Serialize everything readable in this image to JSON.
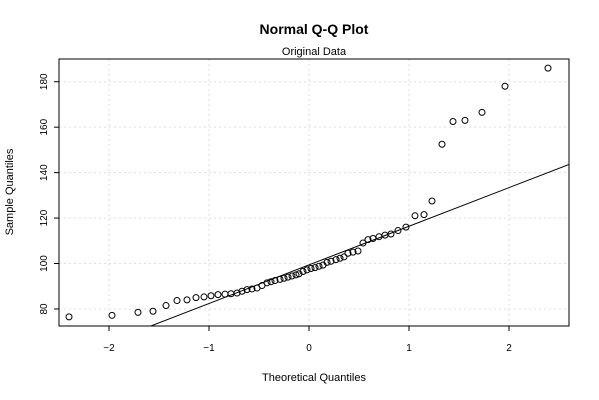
{
  "chart_data": {
    "type": "scatter",
    "title": "Normal Q-Q Plot",
    "subtitle": "Original Data",
    "xlabel": "Theoretical Quantiles",
    "ylabel": "Sample Quantiles",
    "xlim": [
      -2.5,
      2.6
    ],
    "ylim": [
      72.5,
      190
    ],
    "xticks": [
      -2,
      -1,
      0,
      1,
      2
    ],
    "xtick_labels": [
      "−2",
      "−1",
      "0",
      "1",
      "2"
    ],
    "yticks": [
      80,
      100,
      120,
      140,
      160,
      180
    ],
    "yticks_labels": [
      "80",
      "100",
      "120",
      "140",
      "160",
      "180"
    ],
    "grid": true,
    "reference_line": {
      "intercept": 99.4,
      "slope": 17.0
    },
    "x": [
      -2.4,
      -1.97,
      -1.71,
      -1.56,
      -1.43,
      -1.32,
      -1.22,
      -1.13,
      -1.05,
      -0.98,
      -0.91,
      -0.84,
      -0.78,
      -0.72,
      -0.67,
      -0.62,
      -0.57,
      -0.52,
      -0.47,
      -0.42,
      -0.38,
      -0.34,
      -0.29,
      -0.25,
      -0.21,
      -0.17,
      -0.13,
      -0.1,
      -0.06,
      -0.02,
      0.02,
      0.06,
      0.1,
      0.14,
      0.18,
      0.22,
      0.27,
      0.31,
      0.35,
      0.39,
      0.44,
      0.49,
      0.54,
      0.59,
      0.64,
      0.7,
      0.76,
      0.82,
      0.89,
      0.97,
      1.06,
      1.15,
      1.23,
      1.33,
      1.44,
      1.56,
      1.73,
      1.96,
      2.39
    ],
    "y": [
      76.5,
      77.2,
      78.5,
      79.0,
      81.5,
      83.7,
      84.0,
      85.0,
      85.3,
      85.8,
      86.3,
      86.5,
      86.7,
      87.0,
      87.8,
      88.5,
      88.8,
      89.2,
      90.3,
      91.5,
      92.0,
      92.5,
      93.0,
      93.5,
      94.0,
      94.5,
      95.0,
      95.5,
      96.5,
      97.2,
      97.8,
      98.2,
      98.8,
      99.3,
      100.5,
      101.0,
      101.7,
      102.3,
      102.9,
      104.5,
      105.0,
      105.5,
      109.0,
      110.5,
      111.0,
      111.8,
      112.5,
      113.0,
      114.5,
      116.0,
      121.0,
      121.5,
      127.5,
      152.5,
      162.5,
      163.0,
      166.5,
      178.0,
      186.0
    ]
  }
}
